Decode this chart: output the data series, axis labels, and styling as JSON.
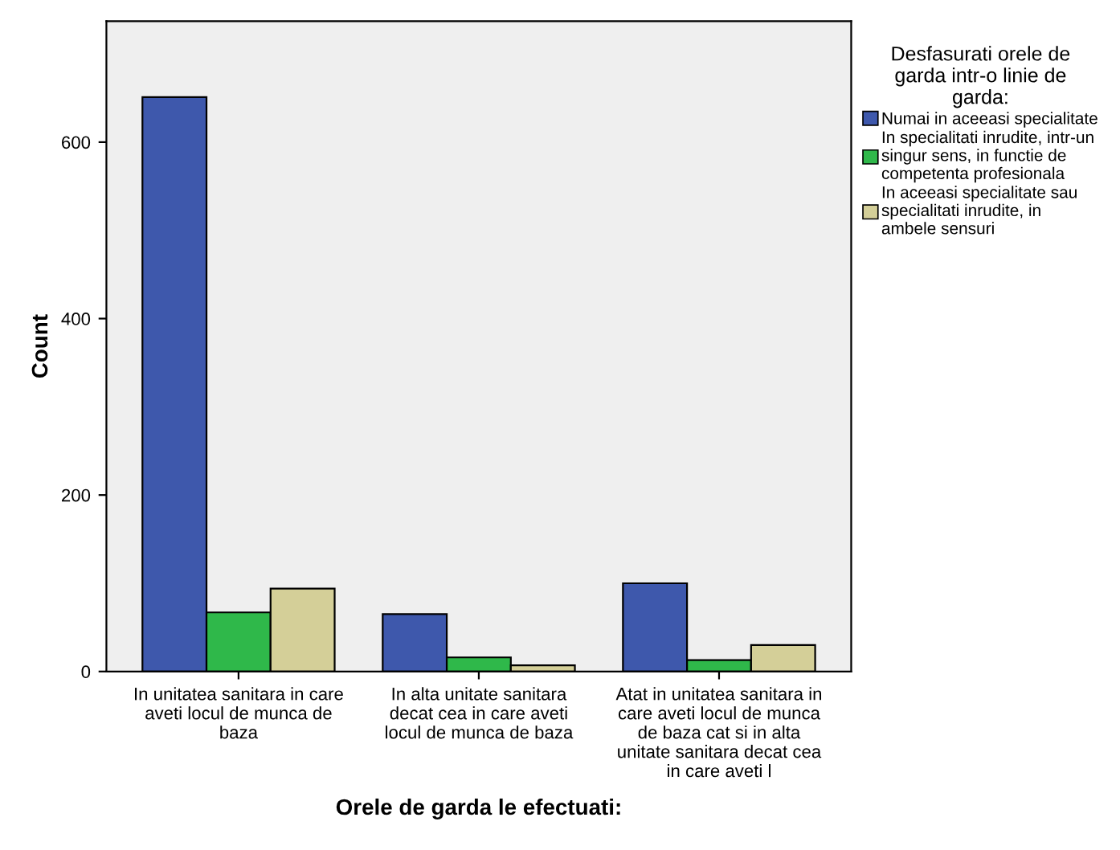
{
  "chart_data": {
    "type": "bar",
    "xlabel": "Orele de garda le efectuati:",
    "ylabel": "Count",
    "legend_title": "Desfasurati orele de\ngarda intr-o linie de\ngarda:",
    "categories": [
      "In unitatea sanitara in care\naveti locul de munca de\nbaza",
      "In alta unitate sanitara\ndecat cea in care aveti\nlocul de munca de baza",
      "Atat in unitatea sanitara in\ncare aveti locul de munca\nde baza cat si in alta\nunitate sanitara decat cea\nin care aveti l"
    ],
    "series": [
      {
        "name": "Numai in aceeasi specialitate",
        "color": "#3e58ac",
        "values": [
          651,
          65,
          100
        ]
      },
      {
        "name": "In specialitati inrudite, intr-un\nsingur sens, in functie de\ncompetenta profesionala",
        "color": "#2fb84a",
        "values": [
          67,
          16,
          13
        ]
      },
      {
        "name": "In aceeasi specialitate sau\nspecialitati inrudite, in\nambele sensuri",
        "color": "#d4cf98",
        "values": [
          94,
          7,
          30
        ]
      }
    ],
    "ylim": [
      0,
      737
    ],
    "yticks": [
      0,
      200,
      400,
      600
    ],
    "grid": false,
    "legend": "right"
  }
}
